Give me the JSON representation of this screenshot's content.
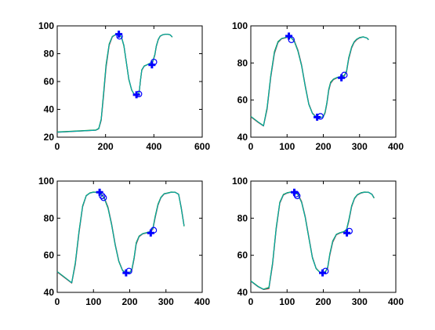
{
  "chart_data": [
    {
      "type": "line",
      "xlim": [
        0,
        600
      ],
      "ylim": [
        20,
        100
      ],
      "xticks": [
        "0",
        "200",
        "400",
        "600"
      ],
      "yticks": [
        "20",
        "40",
        "60",
        "80",
        "100"
      ],
      "grid": false,
      "series": [
        {
          "color": "#ff0000",
          "x": [
            0,
            160,
            172,
            182,
            192,
            202,
            215,
            228,
            240,
            250,
            258,
            266,
            276,
            286,
            296,
            308,
            318,
            328,
            336,
            340,
            344,
            350,
            360,
            372,
            384,
            396,
            404,
            410,
            418,
            426,
            436,
            448,
            458,
            468,
            476
          ],
          "y": [
            23.5,
            25,
            26,
            32,
            50,
            70,
            86,
            92,
            93.5,
            94,
            93.5,
            92,
            86,
            74,
            62,
            54,
            51,
            50.5,
            51,
            53,
            60,
            68,
            71,
            72,
            73,
            74.5,
            79,
            85,
            90,
            92.5,
            93.5,
            94,
            94,
            93.5,
            92
          ]
        },
        {
          "color": "#008000",
          "x": [
            0,
            160,
            172,
            182,
            192,
            202,
            215,
            228,
            240,
            250,
            258,
            266,
            276,
            286,
            296,
            308,
            318,
            328,
            336,
            340,
            344,
            350,
            360,
            372,
            384,
            396,
            404,
            410,
            418,
            426,
            436,
            448,
            458,
            468,
            476
          ],
          "y": [
            23.7,
            25.1,
            26.3,
            33,
            52,
            72,
            87,
            92.4,
            93.6,
            94,
            93.4,
            91.8,
            85.4,
            73.6,
            61.6,
            53.8,
            50.9,
            50.4,
            51,
            53.4,
            60.6,
            68.4,
            71.2,
            72.1,
            73.2,
            74.8,
            79.6,
            85.6,
            90.3,
            92.7,
            93.6,
            94,
            94,
            93.4,
            91.9
          ]
        },
        {
          "color": "#00aaaa",
          "x": [
            0,
            160,
            172,
            182,
            192,
            202,
            215,
            228,
            240,
            250,
            258,
            266,
            276,
            286,
            296,
            308,
            318,
            328,
            336,
            340,
            344,
            350,
            360,
            372,
            384,
            396,
            404,
            410,
            418,
            426,
            436,
            448,
            458,
            468,
            476
          ],
          "y": [
            23.6,
            25,
            26.1,
            32.5,
            51,
            71,
            86.5,
            92.2,
            93.5,
            93.9,
            93.5,
            92,
            86,
            74,
            62,
            54,
            51,
            50.5,
            51,
            53.2,
            60.2,
            68.2,
            71.1,
            72,
            73.1,
            74.6,
            79.3,
            85.3,
            90.1,
            92.6,
            93.5,
            94,
            94,
            93.5,
            92
          ]
        }
      ],
      "plus_markers": [
        {
          "x": 255,
          "y": 94
        },
        {
          "x": 328,
          "y": 50.5
        },
        {
          "x": 392,
          "y": 72
        }
      ],
      "circle_markers": [
        {
          "x": 258,
          "y": 92.5
        },
        {
          "x": 338,
          "y": 51
        },
        {
          "x": 400,
          "y": 74
        }
      ],
      "marker_color": "#0000ff"
    },
    {
      "type": "line",
      "xlim": [
        0,
        400
      ],
      "ylim": [
        40,
        100
      ],
      "xticks": [
        "0",
        "100",
        "200",
        "300",
        "400"
      ],
      "yticks": [
        "40",
        "60",
        "80",
        "100"
      ],
      "grid": false,
      "series": [
        {
          "color": "#ff0000",
          "x": [
            0,
            20,
            35,
            45,
            55,
            65,
            75,
            85,
            95,
            105,
            112,
            120,
            130,
            140,
            150,
            160,
            170,
            180,
            190,
            200,
            205,
            210,
            215,
            220,
            228,
            238,
            248,
            258,
            264,
            270,
            278,
            285,
            292,
            300,
            310,
            320,
            325
          ],
          "y": [
            51,
            48,
            46,
            55,
            72,
            85,
            91,
            93,
            93.5,
            94,
            93.5,
            92,
            87,
            79,
            68,
            58,
            53,
            51,
            50.5,
            51,
            53,
            58,
            65,
            69,
            71,
            72,
            72.5,
            73,
            75,
            82,
            88,
            91,
            92.5,
            93.5,
            94,
            93.5,
            92.5
          ]
        },
        {
          "color": "#008000",
          "x": [
            0,
            20,
            35,
            45,
            55,
            65,
            75,
            85,
            95,
            105,
            112,
            120,
            130,
            140,
            150,
            160,
            170,
            180,
            190,
            200,
            205,
            210,
            215,
            220,
            228,
            238,
            248,
            258,
            264,
            270,
            278,
            285,
            292,
            300,
            310,
            320,
            325
          ],
          "y": [
            51.2,
            48.2,
            46.2,
            56,
            73,
            86,
            91.5,
            93.2,
            93.7,
            94.1,
            93.4,
            91.6,
            86.4,
            78.4,
            67.4,
            57.6,
            52.8,
            50.8,
            50.4,
            51.1,
            53.6,
            58.8,
            65.8,
            69.6,
            71.3,
            72.2,
            72.7,
            73.3,
            75.6,
            82.8,
            88.6,
            91.4,
            92.8,
            93.7,
            94.1,
            93.5,
            92.6
          ]
        },
        {
          "color": "#00aaaa",
          "x": [
            0,
            20,
            35,
            45,
            55,
            65,
            75,
            85,
            95,
            105,
            112,
            120,
            130,
            140,
            150,
            160,
            170,
            180,
            190,
            200,
            205,
            210,
            215,
            220,
            228,
            238,
            248,
            258,
            264,
            270,
            278,
            285,
            292,
            300,
            310,
            320,
            325
          ],
          "y": [
            51.1,
            48.1,
            46.1,
            55.5,
            72.5,
            85.5,
            91.2,
            93.1,
            93.6,
            94,
            93.5,
            91.8,
            86.7,
            78.7,
            67.7,
            57.8,
            52.9,
            50.9,
            50.5,
            51,
            53.3,
            58.4,
            65.4,
            69.3,
            71.2,
            72.1,
            72.6,
            73.1,
            75.3,
            82.4,
            88.3,
            91.2,
            92.7,
            93.6,
            94,
            93.5,
            92.5
          ]
        }
      ],
      "plus_markers": [
        {
          "x": 105,
          "y": 94.5
        },
        {
          "x": 183,
          "y": 50.8
        },
        {
          "x": 250,
          "y": 72
        }
      ],
      "circle_markers": [
        {
          "x": 112,
          "y": 92.5
        },
        {
          "x": 192,
          "y": 51.2
        },
        {
          "x": 258,
          "y": 73.5
        }
      ],
      "marker_color": "#0000ff"
    },
    {
      "type": "line",
      "xlim": [
        0,
        400
      ],
      "ylim": [
        40,
        100
      ],
      "xticks": [
        "0",
        "100",
        "200",
        "300",
        "400"
      ],
      "yticks": [
        "40",
        "60",
        "80",
        "100"
      ],
      "grid": false,
      "series": [
        {
          "color": "#ff0000",
          "x": [
            0,
            20,
            40,
            50,
            60,
            70,
            80,
            90,
            100,
            110,
            120,
            130,
            140,
            150,
            160,
            170,
            180,
            190,
            200,
            206,
            212,
            218,
            226,
            236,
            246,
            256,
            264,
            270,
            278,
            286,
            295,
            305,
            315,
            325,
            335,
            342,
            350
          ],
          "y": [
            51,
            48,
            45,
            55,
            72,
            86,
            92,
            93.5,
            94,
            94,
            93.5,
            91,
            86,
            77,
            66,
            57,
            52,
            50.5,
            50.5,
            52,
            58,
            66,
            70,
            71.5,
            72,
            72.5,
            74,
            80,
            87,
            91,
            93,
            93.5,
            94,
            94,
            93,
            86,
            76
          ]
        },
        {
          "color": "#008000",
          "x": [
            0,
            20,
            40,
            50,
            60,
            70,
            80,
            90,
            100,
            110,
            120,
            130,
            140,
            150,
            160,
            170,
            180,
            190,
            200,
            206,
            212,
            218,
            226,
            236,
            246,
            256,
            264,
            270,
            278,
            286,
            295,
            305,
            315,
            325,
            335,
            342,
            350
          ],
          "y": [
            51.2,
            48.2,
            45.2,
            56,
            73,
            86.6,
            92.2,
            93.6,
            94.1,
            94,
            93.3,
            90.6,
            85.4,
            76.4,
            65.4,
            56.6,
            51.8,
            50.4,
            50.6,
            52.6,
            58.8,
            66.8,
            70.4,
            71.7,
            72.2,
            72.8,
            74.6,
            80.8,
            87.6,
            91.3,
            93.2,
            93.6,
            94.1,
            94,
            92.8,
            85.4,
            75.6
          ]
        },
        {
          "color": "#00aaaa",
          "x": [
            0,
            20,
            40,
            50,
            60,
            70,
            80,
            90,
            100,
            110,
            120,
            130,
            140,
            150,
            160,
            170,
            180,
            190,
            200,
            206,
            212,
            218,
            226,
            236,
            246,
            256,
            264,
            270,
            278,
            286,
            295,
            305,
            315,
            325,
            335,
            342,
            350
          ],
          "y": [
            51.1,
            48.1,
            45.1,
            55.5,
            72.5,
            86.3,
            92.1,
            93.5,
            94,
            94,
            93.4,
            90.8,
            85.7,
            76.7,
            65.7,
            56.8,
            51.9,
            50.5,
            50.5,
            52.3,
            58.4,
            66.4,
            70.2,
            71.6,
            72.1,
            72.6,
            74.3,
            80.4,
            87.3,
            91.1,
            93.1,
            93.5,
            94,
            94,
            92.9,
            85.7,
            75.8
          ]
        }
      ],
      "plus_markers": [
        {
          "x": 117,
          "y": 94
        },
        {
          "x": 190,
          "y": 50.5
        },
        {
          "x": 258,
          "y": 72
        }
      ],
      "circle_markers": [
        {
          "x": 124,
          "y": 92
        },
        {
          "x": 128,
          "y": 91
        },
        {
          "x": 198,
          "y": 51.5
        },
        {
          "x": 266,
          "y": 73.5
        }
      ],
      "marker_color": "#0000ff"
    },
    {
      "type": "line",
      "xlim": [
        0,
        400
      ],
      "ylim": [
        40,
        100
      ],
      "xticks": [
        "0",
        "100",
        "200",
        "300",
        "400"
      ],
      "yticks": [
        "40",
        "60",
        "80",
        "100"
      ],
      "grid": false,
      "series": [
        {
          "color": "#ff0000",
          "x": [
            0,
            20,
            35,
            50,
            60,
            70,
            80,
            90,
            100,
            110,
            120,
            130,
            140,
            150,
            160,
            170,
            180,
            190,
            200,
            206,
            212,
            218,
            226,
            236,
            246,
            256,
            264,
            270,
            278,
            286,
            294,
            304,
            314,
            324,
            334,
            340
          ],
          "y": [
            46,
            43,
            41.5,
            42,
            55,
            74,
            88,
            92.5,
            93.5,
            94,
            94,
            93,
            89,
            81,
            70,
            59,
            53,
            51,
            50.5,
            51,
            53,
            60,
            67,
            71,
            72,
            72.5,
            73.5,
            78,
            86,
            90.5,
            92.5,
            93.5,
            94,
            94,
            93,
            91
          ]
        },
        {
          "color": "#008000",
          "x": [
            0,
            20,
            35,
            50,
            60,
            70,
            80,
            90,
            100,
            110,
            120,
            130,
            140,
            150,
            160,
            170,
            180,
            190,
            200,
            206,
            212,
            218,
            226,
            236,
            246,
            256,
            264,
            270,
            278,
            286,
            294,
            304,
            314,
            324,
            334,
            340
          ],
          "y": [
            46.2,
            43.2,
            41.7,
            42.6,
            56,
            75,
            88.6,
            92.8,
            93.7,
            94.1,
            93.9,
            92.7,
            88.5,
            80.4,
            69.4,
            58.6,
            52.8,
            50.9,
            50.6,
            51.3,
            53.6,
            60.8,
            67.7,
            71.3,
            72.2,
            72.7,
            73.9,
            78.8,
            86.6,
            90.8,
            92.7,
            93.7,
            94.1,
            94,
            92.8,
            90.8
          ]
        },
        {
          "color": "#00aaaa",
          "x": [
            0,
            20,
            35,
            50,
            60,
            70,
            80,
            90,
            100,
            110,
            120,
            130,
            140,
            150,
            160,
            170,
            180,
            190,
            200,
            206,
            212,
            218,
            226,
            236,
            246,
            256,
            264,
            270,
            278,
            286,
            294,
            304,
            314,
            324,
            334,
            340
          ],
          "y": [
            46.1,
            43.1,
            41.6,
            42.3,
            55.5,
            74.5,
            88.3,
            92.6,
            93.6,
            94,
            94,
            92.8,
            88.7,
            80.7,
            69.7,
            58.8,
            52.9,
            51,
            50.5,
            51.1,
            53.3,
            60.4,
            67.4,
            71.2,
            72.1,
            72.6,
            73.7,
            78.4,
            86.3,
            90.6,
            92.6,
            93.6,
            94,
            94,
            92.9,
            90.9
          ]
        }
      ],
      "plus_markers": [
        {
          "x": 120,
          "y": 94
        },
        {
          "x": 198,
          "y": 50.5
        },
        {
          "x": 265,
          "y": 72
        }
      ],
      "circle_markers": [
        {
          "x": 125,
          "y": 93
        },
        {
          "x": 128,
          "y": 92
        },
        {
          "x": 206,
          "y": 51.5
        },
        {
          "x": 272,
          "y": 73
        }
      ],
      "marker_color": "#0000ff"
    }
  ]
}
